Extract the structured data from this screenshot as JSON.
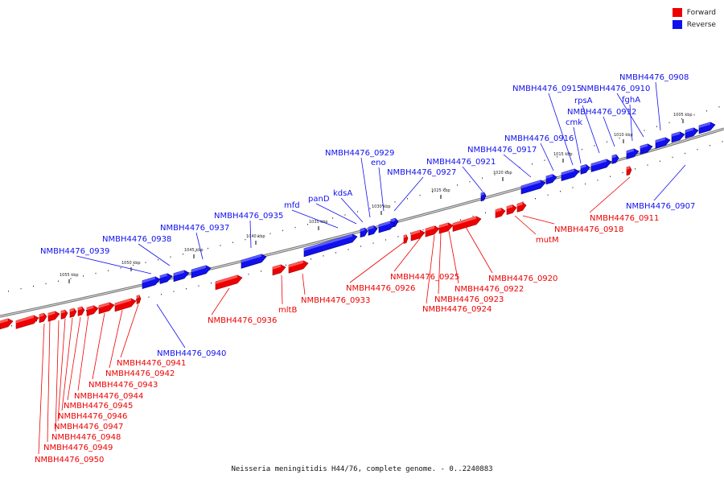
{
  "legend": {
    "forward": {
      "label": "Forward",
      "color": "#ee0000"
    },
    "reverse": {
      "label": "Reverse",
      "color": "#1010ee"
    }
  },
  "caption": "Neisseria meningitidis H44/76, complete genome. - 0..2240883",
  "ticks": [
    "1005 kbp",
    "1010 kbp",
    "1015 kbp",
    "1020 kbp",
    "1025 kbp",
    "1030 kbp",
    "1035 kbp",
    "1040 kbp",
    "1045 kbp",
    "1050 kbp",
    "1055 kbp"
  ],
  "reverse_labels": [
    "NMBH4476_0908",
    "NMBH4476_0910",
    "fghA",
    "NMBH4476_0912",
    "rpsA",
    "NMBH4476_0915",
    "cmk",
    "NMBH4476_0916",
    "NMBH4476_0917",
    "NMBH4476_0921",
    "NMBH4476_0927",
    "eno",
    "NMBH4476_0929",
    "kdsA",
    "panD",
    "mfd",
    "NMBH4476_0935",
    "NMBH4476_0937",
    "NMBH4476_0938",
    "NMBH4476_0939",
    "NMBH4476_0907",
    "NMBH4476_0940"
  ],
  "forward_labels": [
    "NMBH4476_0911",
    "NMBH4476_0918",
    "mutM",
    "NMBH4476_0920",
    "NMBH4476_0922",
    "NMBH4476_0923",
    "NMBH4476_0924",
    "NMBH4476_0925",
    "NMBH4476_0926",
    "NMBH4476_0933",
    "mltB",
    "NMBH4476_0936",
    "NMBH4476_0941",
    "NMBH4476_0942",
    "NMBH4476_0943",
    "NMBH4476_0944",
    "NMBH4476_0945",
    "NMBH4476_0946",
    "NMBH4476_0947",
    "NMBH4476_0948",
    "NMBH4476_0949",
    "NMBH4476_0950"
  ]
}
